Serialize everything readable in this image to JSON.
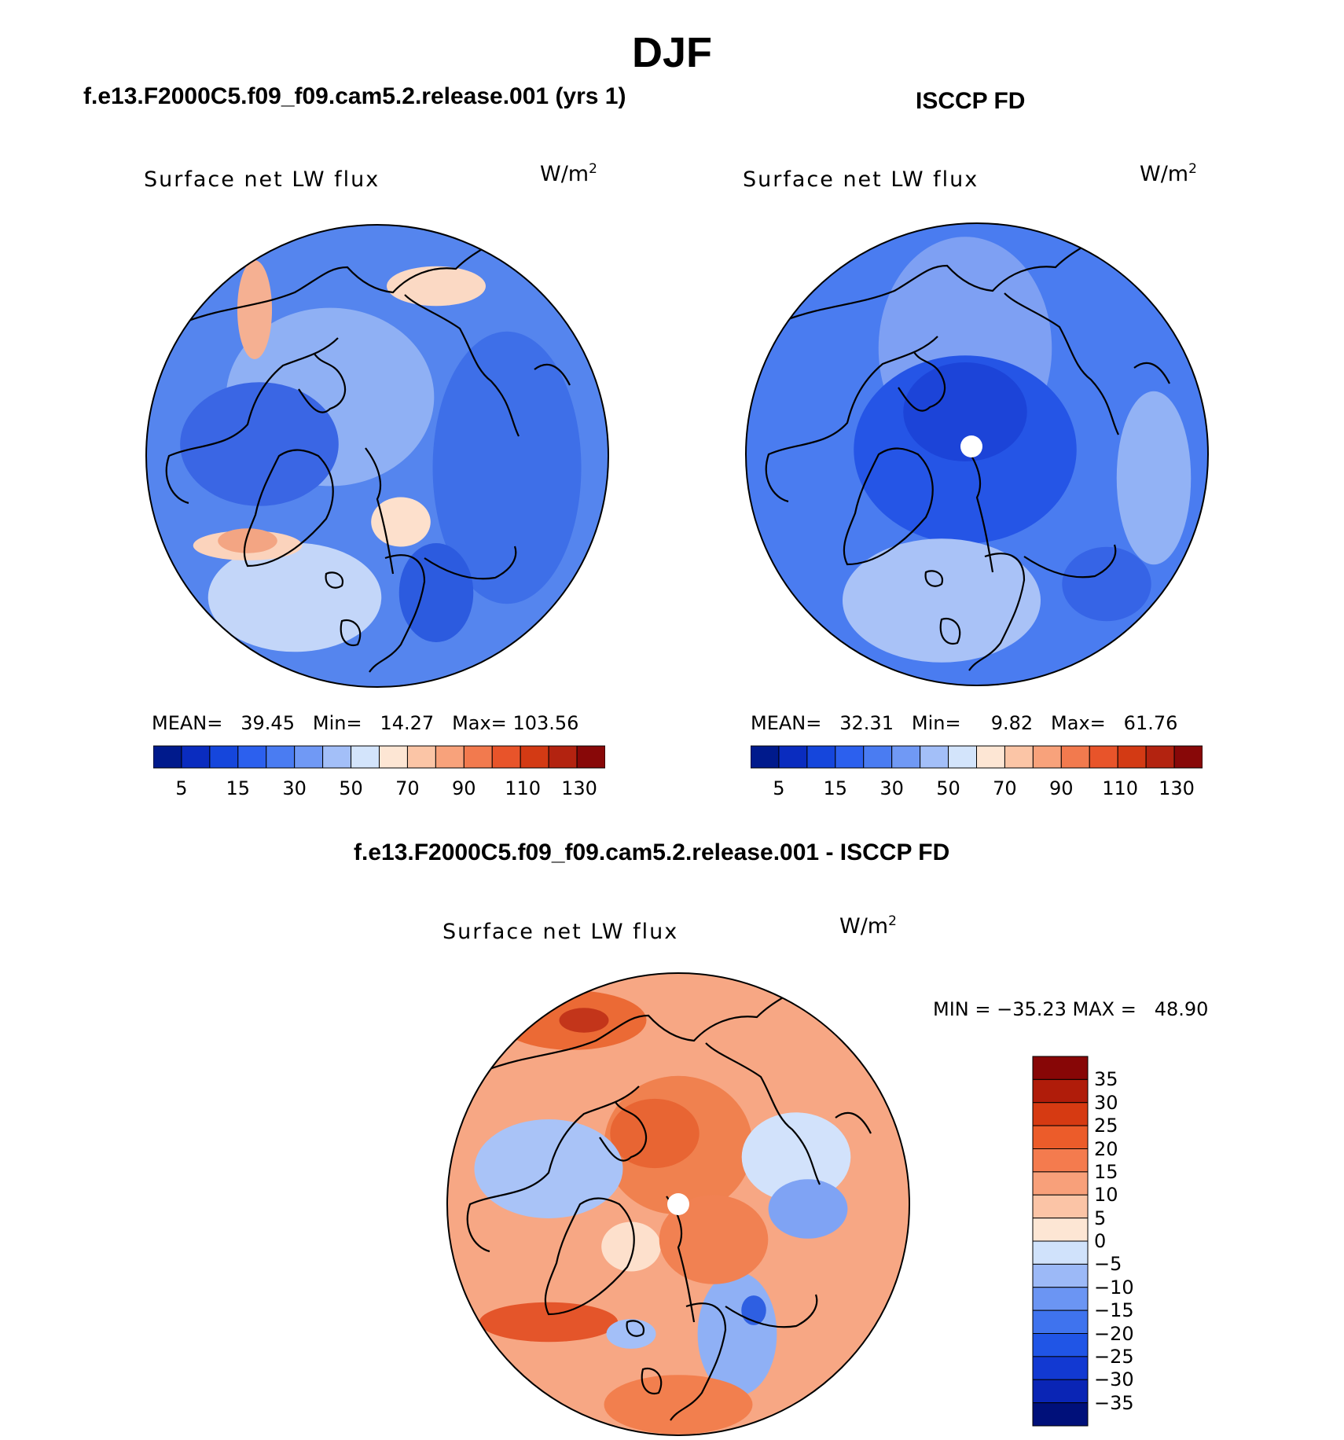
{
  "page": {
    "season": "DJF",
    "icons": [
      "globe-map-icon"
    ]
  },
  "chart_data": [
    {
      "type": "heatmap",
      "panel": "model",
      "title": "f.e13.F2000C5.f09_f09.cam5.2.release.001 (yrs 1)",
      "variable": "Surface net LW flux",
      "units": "W/m",
      "units_exp": "2",
      "projection": "north-polar-stereographic",
      "stats": {
        "mean_label": "MEAN=",
        "mean": "39.45",
        "min_label": "Min=",
        "min": "14.27",
        "max_label": "Max=",
        "max": "103.56"
      },
      "colorbar": {
        "colors": [
          "#001a8c",
          "#0a2cbf",
          "#1546dc",
          "#2c60ee",
          "#4a7cf2",
          "#7099f5",
          "#a3bff8",
          "#d3e4fb",
          "#fde6d4",
          "#fbc5a6",
          "#f8a27b",
          "#f27a4e",
          "#e8542a",
          "#d33a14",
          "#b32310",
          "#880808"
        ],
        "tick_labels": [
          "5",
          "15",
          "30",
          "50",
          "70",
          "90",
          "110",
          "130"
        ]
      },
      "fields": [
        {
          "color": "#5585ee",
          "rx": 0.95,
          "ry": 0.95,
          "cx": 0,
          "cy": 0
        },
        {
          "color": "#8fb0f4",
          "rx": 0.42,
          "ry": 0.36,
          "cx": -0.2,
          "cy": -0.25
        },
        {
          "color": "#3e6fe8",
          "rx": 0.3,
          "ry": 0.55,
          "cx": 0.55,
          "cy": 0.05
        },
        {
          "color": "#3a66e4",
          "rx": 0.32,
          "ry": 0.25,
          "cx": -0.5,
          "cy": -0.05
        },
        {
          "color": "#c3d6f9",
          "rx": 0.35,
          "ry": 0.22,
          "cx": -0.35,
          "cy": 0.6
        },
        {
          "color": "#fbd3bc",
          "rx": 0.22,
          "ry": 0.06,
          "cx": -0.55,
          "cy": 0.38
        },
        {
          "color": "#f3a583",
          "rx": 0.12,
          "ry": 0.05,
          "cx": -0.55,
          "cy": 0.36
        },
        {
          "color": "#fbd9c4",
          "rx": 0.2,
          "ry": 0.08,
          "cx": 0.25,
          "cy": -0.72
        },
        {
          "color": "#f5b092",
          "rx": 0.07,
          "ry": 0.2,
          "cx": -0.52,
          "cy": -0.62
        },
        {
          "color": "#fde0cc",
          "rx": 0.12,
          "ry": 0.1,
          "cx": 0.1,
          "cy": 0.28
        },
        {
          "color": "#2c5bdf",
          "rx": 0.15,
          "ry": 0.2,
          "cx": 0.25,
          "cy": 0.58
        }
      ],
      "pole_hole": false
    },
    {
      "type": "heatmap",
      "panel": "observation",
      "title": "ISCCP FD",
      "variable": "Surface net LW flux",
      "units": "W/m",
      "units_exp": "2",
      "projection": "north-polar-stereographic",
      "stats": {
        "mean_label": "MEAN=",
        "mean": "32.31",
        "min_label": "Min=",
        "min": "9.82",
        "max_label": "Max=",
        "max": "61.76"
      },
      "colorbar": {
        "colors": [
          "#001a8c",
          "#0a2cbf",
          "#1546dc",
          "#2c60ee",
          "#4a7cf2",
          "#7099f5",
          "#a3bff8",
          "#d3e4fb",
          "#fde6d4",
          "#fbc5a6",
          "#f8a27b",
          "#f27a4e",
          "#e8542a",
          "#d33a14",
          "#b32310",
          "#880808"
        ],
        "tick_labels": [
          "5",
          "15",
          "30",
          "50",
          "70",
          "90",
          "110",
          "130"
        ]
      },
      "fields": [
        {
          "color": "#4a7cf0",
          "rx": 0.95,
          "ry": 0.95,
          "cx": 0,
          "cy": 0
        },
        {
          "color": "#7ea0f3",
          "rx": 0.35,
          "ry": 0.45,
          "cx": -0.05,
          "cy": -0.45
        },
        {
          "color": "#2555e6",
          "rx": 0.45,
          "ry": 0.38,
          "cx": -0.05,
          "cy": -0.02
        },
        {
          "color": "#1c44d8",
          "rx": 0.25,
          "ry": 0.2,
          "cx": -0.05,
          "cy": -0.18
        },
        {
          "color": "#a9c2f7",
          "rx": 0.4,
          "ry": 0.25,
          "cx": -0.15,
          "cy": 0.62
        },
        {
          "color": "#92b2f5",
          "rx": 0.15,
          "ry": 0.35,
          "cx": 0.75,
          "cy": 0.1
        },
        {
          "color": "#3664e6",
          "rx": 0.18,
          "ry": 0.15,
          "cx": 0.55,
          "cy": 0.55
        }
      ],
      "pole_hole": true
    },
    {
      "type": "heatmap",
      "panel": "difference",
      "title": "f.e13.F2000C5.f09_f09.cam5.2.release.001 - ISCCP FD",
      "variable": "Surface net LW flux",
      "units": "W/m",
      "units_exp": "2",
      "projection": "north-polar-stereographic",
      "stats_text": "MIN = −35.23 MAX =   48.90",
      "colorbar": {
        "colors": [
          "#00107a",
          "#0a25b5",
          "#1239d2",
          "#2055e6",
          "#3f73ee",
          "#6b95f3",
          "#9cb9f7",
          "#d0e2fb",
          "#fde6d4",
          "#fbc4a6",
          "#f8a07a",
          "#f47b4e",
          "#ec5c2a",
          "#d63a12",
          "#b01c0a",
          "#870606"
        ],
        "tick_labels": [
          "35",
          "30",
          "25",
          "20",
          "15",
          "10",
          "5",
          "0",
          "−5",
          "−10",
          "−15",
          "−20",
          "−25",
          "−30",
          "−35"
        ]
      },
      "fields": [
        {
          "color": "#f7a784",
          "rx": 0.95,
          "ry": 0.95,
          "cx": 0,
          "cy": 0
        },
        {
          "color": "#f0814f",
          "rx": 0.3,
          "ry": 0.28,
          "cx": 0.0,
          "cy": -0.25
        },
        {
          "color": "#e86533",
          "rx": 0.18,
          "ry": 0.14,
          "cx": -0.1,
          "cy": -0.3
        },
        {
          "color": "#eb6a35",
          "rx": 0.3,
          "ry": 0.12,
          "cx": -0.45,
          "cy": -0.78
        },
        {
          "color": "#c3351a",
          "rx": 0.1,
          "ry": 0.05,
          "cx": -0.4,
          "cy": -0.78
        },
        {
          "color": "#a9c3f7",
          "rx": 0.3,
          "ry": 0.2,
          "cx": -0.55,
          "cy": -0.15
        },
        {
          "color": "#d2e2fb",
          "rx": 0.22,
          "ry": 0.18,
          "cx": 0.5,
          "cy": -0.2
        },
        {
          "color": "#7fa3f4",
          "rx": 0.16,
          "ry": 0.12,
          "cx": 0.55,
          "cy": 0.02
        },
        {
          "color": "#8fb0f5",
          "rx": 0.16,
          "ry": 0.25,
          "cx": 0.25,
          "cy": 0.55
        },
        {
          "color": "#2e5fe2",
          "rx": 0.05,
          "ry": 0.06,
          "cx": 0.32,
          "cy": 0.45
        },
        {
          "color": "#e4552a",
          "rx": 0.28,
          "ry": 0.08,
          "cx": -0.55,
          "cy": 0.5
        },
        {
          "color": "#fde0cc",
          "rx": 0.12,
          "ry": 0.1,
          "cx": -0.2,
          "cy": 0.18
        },
        {
          "color": "#f18152",
          "rx": 0.22,
          "ry": 0.18,
          "cx": 0.15,
          "cy": 0.15
        },
        {
          "color": "#a3bff8",
          "rx": 0.1,
          "ry": 0.06,
          "cx": -0.2,
          "cy": 0.55
        },
        {
          "color": "#f27f4e",
          "rx": 0.3,
          "ry": 0.12,
          "cx": 0.0,
          "cy": 0.85
        }
      ],
      "pole_hole": true
    }
  ]
}
